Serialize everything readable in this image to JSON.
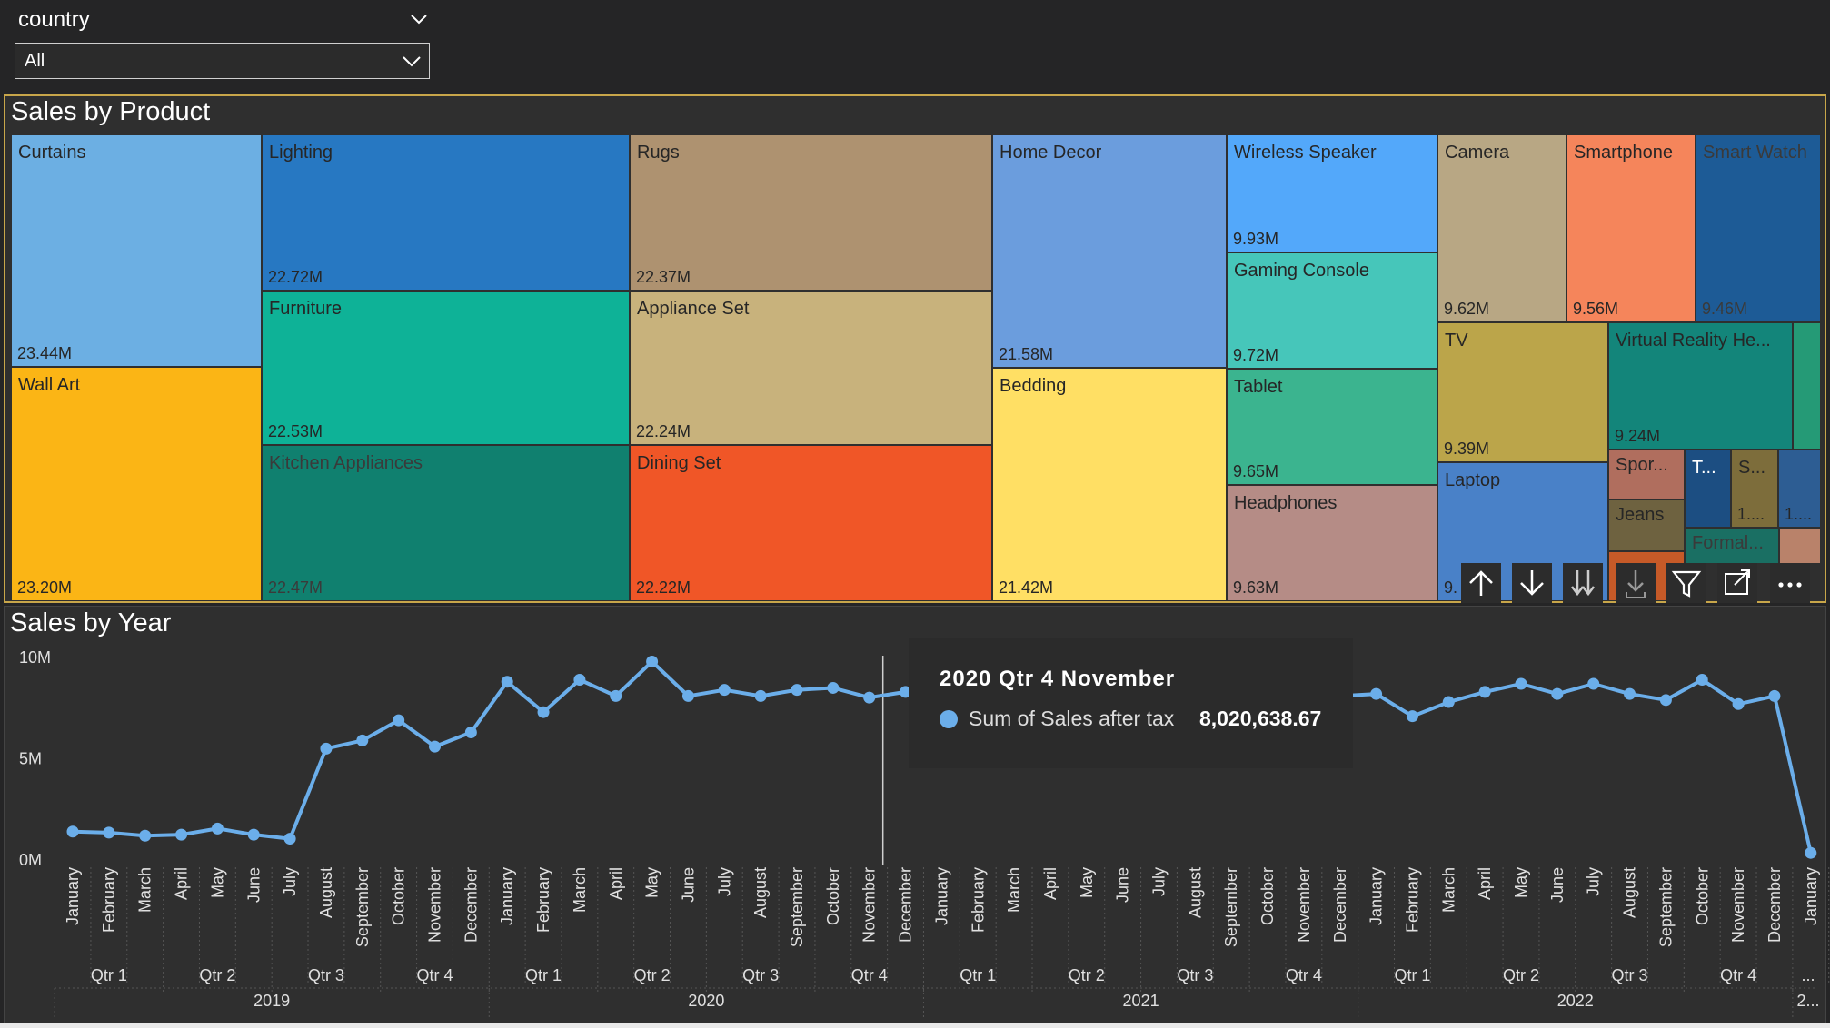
{
  "slicer": {
    "title": "country",
    "value": "All"
  },
  "treemap": {
    "title": "Sales by Product",
    "tiles": [
      {
        "name": "Curtains",
        "value": "23.44M",
        "color": "#6cafe3"
      },
      {
        "name": "Wall Art",
        "value": "23.20M",
        "color": "#fbb515"
      },
      {
        "name": "Lighting",
        "value": "22.72M",
        "color": "#2778c2"
      },
      {
        "name": "Furniture",
        "value": "22.53M",
        "color": "#0eb297"
      },
      {
        "name": "Kitchen Appliances",
        "value": "22.47M",
        "color": "#10806f"
      },
      {
        "name": "Rugs",
        "value": "22.37M",
        "color": "#ae9270"
      },
      {
        "name": "Appliance Set",
        "value": "22.24M",
        "color": "#c8b27c"
      },
      {
        "name": "Dining Set",
        "value": "22.22M",
        "color": "#f05627"
      },
      {
        "name": "Home Decor",
        "value": "21.58M",
        "color": "#6b9ddd"
      },
      {
        "name": "Bedding",
        "value": "21.42M",
        "color": "#ffdf64"
      },
      {
        "name": "Wireless Speaker",
        "value": "9.93M",
        "color": "#53a8fa"
      },
      {
        "name": "Gaming Console",
        "value": "9.72M",
        "color": "#46c6ba"
      },
      {
        "name": "Tablet",
        "value": "9.65M",
        "color": "#3bb48f"
      },
      {
        "name": "Headphones",
        "value": "9.63M",
        "color": "#b58c86"
      },
      {
        "name": "Camera",
        "value": "9.62M",
        "color": "#b8a784"
      },
      {
        "name": "Smartphone",
        "value": "9.56M",
        "color": "#f5855b"
      },
      {
        "name": "Smart Watch",
        "value": "9.46M",
        "color": "#1d5b96"
      },
      {
        "name": "TV",
        "value": "9.39M",
        "color": "#bba54a"
      },
      {
        "name": "Virtual Reality He...",
        "value": "9.24M",
        "color": "#13857a"
      },
      {
        "name": "Laptop",
        "value": "9.",
        "color": "#4981c8"
      },
      {
        "name": "Spor...",
        "value": "",
        "color": "#b06e5e"
      },
      {
        "name": "Jeans",
        "value": "",
        "color": "#6e6240"
      },
      {
        "name": "Formal...",
        "value": "",
        "color": "#1a6f63"
      },
      {
        "name": "T...",
        "value": "",
        "color": "#1c4e82"
      },
      {
        "name": "S...",
        "value": "1....",
        "color": "#7d6d3b"
      },
      {
        "name": "",
        "value": "1....",
        "color": "#2d5d93"
      },
      {
        "name": "",
        "value": "",
        "color": "#259a76"
      },
      {
        "name": "",
        "value": "",
        "color": "#b9826a"
      },
      {
        "name": "",
        "value": "",
        "color": "#c65a28"
      }
    ],
    "toolbar_icons": [
      "drill-up-icon",
      "drill-down-icon",
      "expand-all-down-icon",
      "expand-hierarchy-icon",
      "filter-icon",
      "focus-mode-icon",
      "more-options-icon"
    ]
  },
  "chart_data": {
    "type": "line",
    "title": "Sales by Year",
    "ylabel": "",
    "xlabel": "",
    "ylim": [
      0,
      10000000
    ],
    "yticks": [
      "10M",
      "5M",
      "0M"
    ],
    "series": [
      {
        "name": "Sum of Sales after tax",
        "color": "#6baeea",
        "x": [
          "January",
          "February",
          "March",
          "April",
          "May",
          "June",
          "July",
          "August",
          "September",
          "October",
          "November",
          "December",
          "January",
          "February",
          "March",
          "April",
          "May",
          "June",
          "July",
          "August",
          "September",
          "October",
          "November",
          "December",
          "January",
          "February",
          "March",
          "April",
          "May",
          "June",
          "July",
          "August",
          "September",
          "October",
          "November",
          "December",
          "January",
          "February",
          "March",
          "April",
          "May",
          "June",
          "July",
          "August",
          "September",
          "October",
          "November",
          "December",
          "January"
        ],
        "values": [
          1400000,
          1350000,
          1200000,
          1250000,
          1550000,
          1250000,
          1050000,
          5500000,
          5900000,
          6900000,
          5600000,
          6300000,
          8800000,
          7300000,
          8900000,
          8100000,
          9800000,
          8100000,
          8400000,
          8100000,
          8400000,
          8500000,
          8020638.67,
          8300000,
          8300000,
          8200000,
          8300000,
          8200000,
          8400000,
          8300000,
          8500000,
          8400000,
          8300000,
          8300000,
          8200000,
          8100000,
          8200000,
          7100000,
          7800000,
          8300000,
          8700000,
          8200000,
          8700000,
          8200000,
          7900000,
          8900000,
          7700000,
          8100000,
          350000
        ]
      }
    ],
    "quarters": [
      "Qtr 1",
      "Qtr 2",
      "Qtr 3",
      "Qtr 4",
      "Qtr 1",
      "Qtr 2",
      "Qtr 3",
      "Qtr 4",
      "Qtr 1",
      "Qtr 2",
      "Qtr 3",
      "Qtr 4",
      "Qtr 1",
      "Qtr 2",
      "Qtr 3",
      "Qtr 4",
      "..."
    ],
    "years": [
      "2019",
      "2020",
      "2021",
      "2022",
      "2..."
    ]
  },
  "tooltip": {
    "title": "2020 Qtr 4 November",
    "label": "Sum of Sales after tax",
    "value": "8,020,638.67"
  }
}
